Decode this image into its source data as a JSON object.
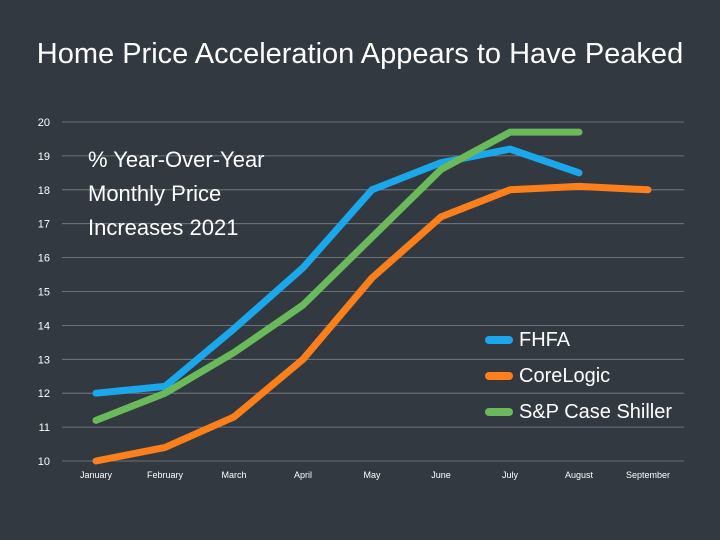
{
  "chart_data": {
    "type": "line",
    "title": "Home Price Acceleration Appears to Have Peaked",
    "subtitle": "% Year-Over-Year\nMonthly Price\nIncreases 2021",
    "categories": [
      "January",
      "February",
      "March",
      "April",
      "May",
      "June",
      "July",
      "August",
      "September"
    ],
    "ylim": [
      10,
      20
    ],
    "yticks": [
      10,
      11,
      12,
      13,
      14,
      15,
      16,
      17,
      18,
      19,
      20
    ],
    "grid": true,
    "legend_position": "right",
    "series": [
      {
        "name": "FHFA",
        "color": "#1aa7ec",
        "values": [
          12.0,
          12.2,
          13.9,
          15.7,
          18.0,
          18.8,
          19.2,
          18.5,
          null
        ]
      },
      {
        "name": "CoreLogic",
        "color": "#ff7f1a",
        "values": [
          10.0,
          10.4,
          11.3,
          13.0,
          15.4,
          17.2,
          18.0,
          18.1,
          18.0
        ]
      },
      {
        "name": "S&P Case Shiller",
        "color": "#6ab95a",
        "values": [
          11.2,
          12.0,
          13.2,
          14.6,
          16.6,
          18.6,
          19.7,
          19.7,
          null
        ]
      }
    ]
  }
}
